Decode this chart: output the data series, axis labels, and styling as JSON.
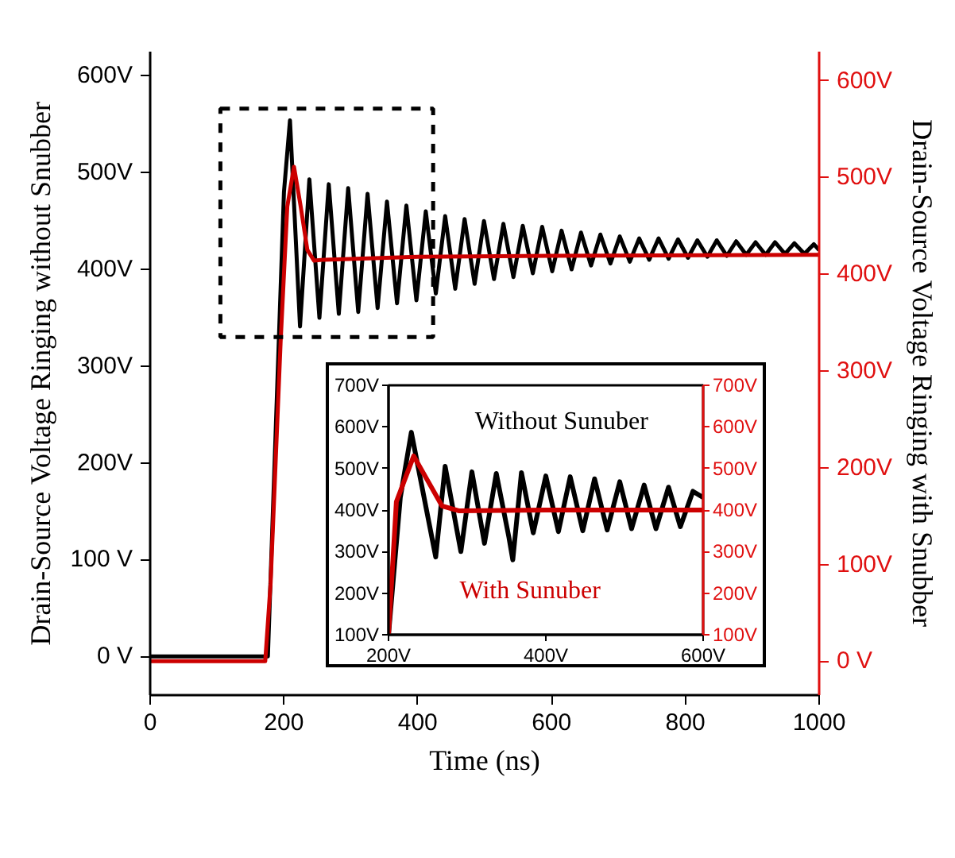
{
  "chart_data": [
    {
      "type": "line",
      "xlabel": "Time (ns)",
      "ylabel": "Drain-Source Voltage Ringing without Snubber",
      "y2label": "Drain-Source Voltage Ringing with Snubber",
      "xlim": [
        0,
        1000
      ],
      "ylim": [
        -40,
        625
      ],
      "y2lim": [
        -35,
        630
      ],
      "xticks": [
        0,
        200,
        400,
        600,
        800,
        1000
      ],
      "yticks": [
        {
          "value": 0,
          "label": "0 V"
        },
        {
          "value": 100,
          "label": "100 V"
        },
        {
          "value": 200,
          "label": "200V"
        },
        {
          "value": 300,
          "label": "300V"
        },
        {
          "value": 400,
          "label": "400V"
        },
        {
          "value": 500,
          "label": "500V"
        },
        {
          "value": 600,
          "label": "600V"
        }
      ],
      "y2ticks": [
        {
          "value": 0,
          "label": "0 V"
        },
        {
          "value": 100,
          "label": "100V"
        },
        {
          "value": 200,
          "label": "200V"
        },
        {
          "value": 300,
          "label": "300V"
        },
        {
          "value": 400,
          "label": "400V"
        },
        {
          "value": 500,
          "label": "500V"
        },
        {
          "value": 600,
          "label": "600V"
        }
      ],
      "grid": false,
      "line_style": "solid",
      "series": [
        {
          "color": "#000000",
          "axis": "y",
          "x": [
            0,
            170,
            176,
            190,
            200,
            209,
            224,
            238,
            253,
            267,
            282,
            296,
            311,
            325,
            340,
            354,
            369,
            383,
            398,
            412,
            427,
            441,
            456,
            470,
            485,
            499,
            514,
            528,
            543,
            557,
            572,
            586,
            601,
            615,
            630,
            644,
            659,
            673,
            688,
            702,
            717,
            731,
            746,
            760,
            775,
            789,
            804,
            818,
            833,
            847,
            862,
            876,
            891,
            905,
            920,
            934,
            949,
            963,
            978,
            992,
            1000
          ],
          "values": [
            0,
            0,
            0,
            280,
            480,
            554,
            341,
            493,
            350,
            488,
            354,
            484,
            356,
            478,
            360,
            470,
            365,
            466,
            368,
            460,
            375,
            455,
            380,
            452,
            385,
            450,
            390,
            447,
            392,
            445,
            396,
            444,
            398,
            440,
            400,
            438,
            404,
            436,
            406,
            434,
            408,
            432,
            410,
            432,
            411,
            431,
            412,
            430,
            413,
            430,
            414,
            429,
            415,
            428,
            415,
            428,
            416,
            427,
            416,
            426,
            420
          ]
        },
        {
          "color": "#cc0000",
          "axis": "y2",
          "x": [
            0,
            172,
            180,
            195,
            205,
            215,
            225,
            235,
            245,
            260,
            400,
            600,
            1000
          ],
          "values": [
            0,
            0,
            80,
            330,
            470,
            511,
            470,
            425,
            414,
            415,
            418,
            419,
            420
          ]
        }
      ]
    },
    {
      "type": "line",
      "xlim": [
        200,
        600
      ],
      "ylim": [
        100,
        700
      ],
      "y2lim": [
        100,
        700
      ],
      "xticks": [
        {
          "value": 200,
          "label": "200V"
        },
        {
          "value": 400,
          "label": "400V"
        },
        {
          "value": 600,
          "label": "600V"
        }
      ],
      "yticks": [
        {
          "value": 100,
          "label": "100V"
        },
        {
          "value": 200,
          "label": "200V"
        },
        {
          "value": 300,
          "label": "300V"
        },
        {
          "value": 400,
          "label": "400V"
        },
        {
          "value": 500,
          "label": "500V"
        },
        {
          "value": 600,
          "label": "600V"
        },
        {
          "value": 700,
          "label": "700V"
        }
      ],
      "y2ticks": [
        {
          "value": 100,
          "label": "100V"
        },
        {
          "value": 200,
          "label": "200V"
        },
        {
          "value": 300,
          "label": "300V"
        },
        {
          "value": 400,
          "label": "400V"
        },
        {
          "value": 500,
          "label": "500V"
        },
        {
          "value": 600,
          "label": "600V"
        },
        {
          "value": 700,
          "label": "700V"
        }
      ],
      "grid": false,
      "line_style": "solid",
      "series": [
        {
          "name": "Without Sunuber",
          "color": "#000000",
          "axis": "y",
          "x": [
            200,
            215,
            229,
            260,
            272,
            292,
            306,
            322,
            337,
            353,
            358,
            369,
            384,
            400,
            416,
            431,
            447,
            462,
            478,
            494,
            509,
            525,
            540,
            556,
            571,
            587,
            600
          ],
          "values": [
            100,
            430,
            587,
            287,
            505,
            300,
            492,
            320,
            488,
            335,
            280,
            490,
            345,
            482,
            348,
            480,
            350,
            475,
            352,
            468,
            355,
            460,
            355,
            455,
            360,
            445,
            430
          ]
        },
        {
          "name": "With Sunuber",
          "color": "#cc0000",
          "axis": "y2",
          "x": [
            200,
            210,
            232,
            250,
            268,
            290,
            400,
            600
          ],
          "values": [
            100,
            420,
            530,
            470,
            410,
            398,
            400,
            400
          ]
        }
      ]
    }
  ]
}
